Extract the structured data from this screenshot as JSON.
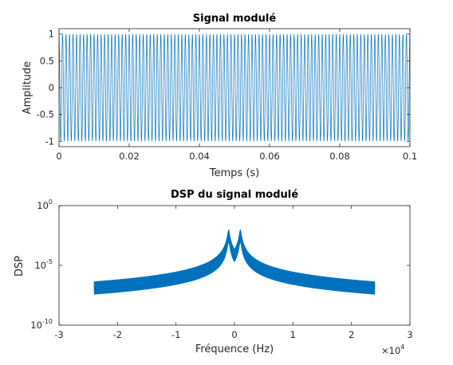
{
  "chart_data": [
    {
      "type": "line",
      "title": "Signal modulé",
      "xlabel": "Temps (s)",
      "ylabel": "Amplitude",
      "xlim": [
        0,
        0.1
      ],
      "ylim": [
        -1.1,
        1.1
      ],
      "x_ticks": [
        0,
        0.02,
        0.04,
        0.06,
        0.08,
        0.1
      ],
      "x_tick_labels": [
        "0",
        "0.02",
        "0.04",
        "0.06",
        "0.08",
        "0.1"
      ],
      "y_ticks": [
        -1,
        -0.5,
        0,
        0.5,
        1
      ],
      "y_tick_labels": [
        "-1",
        "-0.5",
        "0",
        "0.5",
        "1"
      ],
      "grid": false,
      "series": [
        {
          "color": "#0072bd",
          "carrier_frequency_hz": 1000,
          "amplitude": 1,
          "x_range": [
            0,
            0.1
          ]
        }
      ]
    },
    {
      "type": "line",
      "title": "DSP du signal modulé",
      "xlabel": "Fréquence (Hz)",
      "ylabel": "DSP",
      "xlim": [
        -30000,
        30000
      ],
      "ylim": [
        1e-10,
        1
      ],
      "y_scale": "log",
      "x_ticks": [
        -30000,
        -20000,
        -10000,
        0,
        10000,
        20000,
        30000
      ],
      "x_tick_labels": [
        "-3",
        "-2",
        "-1",
        "0",
        "1",
        "2",
        "3"
      ],
      "x_exponent_label": {
        "base": "×10",
        "exp": "4"
      },
      "y_ticks": [
        1e-10,
        1e-05,
        1
      ],
      "y_tick_labels": [
        {
          "base": "10",
          "exp": "-10"
        },
        {
          "base": "10",
          "exp": "-5"
        },
        {
          "base": "10",
          "exp": "0"
        }
      ],
      "grid": false,
      "series": [
        {
          "color": "#0072bd",
          "x_range": [
            -24000,
            24000
          ],
          "peaks_hz": [
            -1000,
            1000
          ],
          "peak_level": 0.01,
          "floor_level_range": [
            3e-09,
            1e-08
          ]
        }
      ]
    }
  ]
}
